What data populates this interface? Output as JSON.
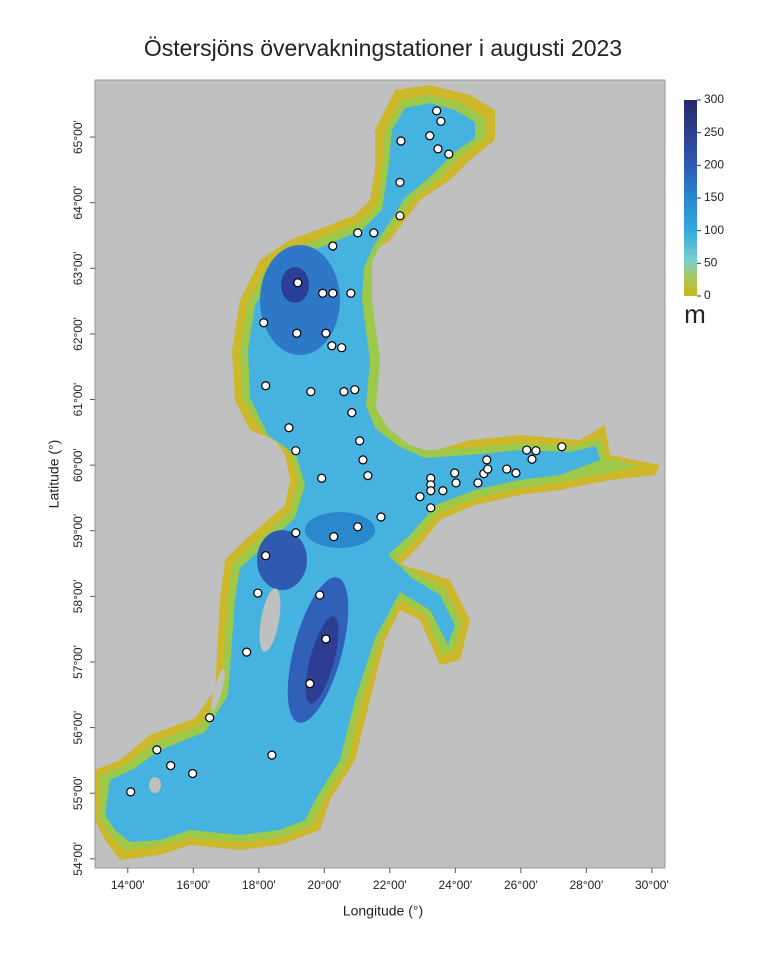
{
  "chart_data": {
    "type": "scatter",
    "title": "Östersjöns övervakningstationer i augusti 2023",
    "xlabel": "Longitude (°)",
    "ylabel": "Latitude (°)",
    "x": [
      23.43,
      23.56,
      22.34,
      23.22,
      23.47,
      23.8,
      22.31,
      22.31,
      21.02,
      21.51,
      20.26,
      19.19,
      19.95,
      20.26,
      20.81,
      18.15,
      19.16,
      20.05,
      20.23,
      20.53,
      18.21,
      19.59,
      20.6,
      20.93,
      20.84,
      18.92,
      21.08,
      21.18,
      19.13,
      21.33,
      19.92,
      22.92,
      23.25,
      23.25,
      23.25,
      23.62,
      23.25,
      23.98,
      24.02,
      24.69,
      24.87,
      24.99,
      24.96,
      25.57,
      25.85,
      26.18,
      26.46,
      26.34,
      27.25,
      21.73,
      21.02,
      20.29,
      19.13,
      18.21,
      17.97,
      19.86,
      20.05,
      17.63,
      19.56,
      16.5,
      14.89,
      15.31,
      15.98,
      14.09,
      18.4
    ],
    "values": [
      65.4,
      65.24,
      64.94,
      65.02,
      64.82,
      64.74,
      64.31,
      63.8,
      63.54,
      63.54,
      63.34,
      62.78,
      62.62,
      62.62,
      62.62,
      62.17,
      62.01,
      62.01,
      61.82,
      61.79,
      61.21,
      61.12,
      61.12,
      61.15,
      60.8,
      60.57,
      60.37,
      60.08,
      60.22,
      59.84,
      59.8,
      59.52,
      59.8,
      59.7,
      59.61,
      59.61,
      59.35,
      59.88,
      59.73,
      59.73,
      59.87,
      59.94,
      60.08,
      59.94,
      59.88,
      60.23,
      60.22,
      60.09,
      60.28,
      59.21,
      59.06,
      58.91,
      58.97,
      58.62,
      58.05,
      58.02,
      57.35,
      57.15,
      56.67,
      56.15,
      55.66,
      55.42,
      55.3,
      55.02,
      55.58
    ],
    "color": "#ffffff",
    "xlim": [
      13,
      30.4
    ],
    "ylim": [
      53.86,
      65.87
    ],
    "xticks": [
      {
        "value": 14,
        "label": "14°00'"
      },
      {
        "value": 16,
        "label": "16°00'"
      },
      {
        "value": 18,
        "label": "18°00'"
      },
      {
        "value": 20,
        "label": "20°00'"
      },
      {
        "value": 22,
        "label": "22°00'"
      },
      {
        "value": 24,
        "label": "24°00'"
      },
      {
        "value": 26,
        "label": "26°00'"
      },
      {
        "value": 28,
        "label": "28°00'"
      },
      {
        "value": 30,
        "label": "30°00'"
      }
    ],
    "yticks": [
      {
        "value": 54,
        "label": "54°00'"
      },
      {
        "value": 55,
        "label": "55°00'"
      },
      {
        "value": 56,
        "label": "56°00'"
      },
      {
        "value": 57,
        "label": "57°00'"
      },
      {
        "value": 58,
        "label": "58°00'"
      },
      {
        "value": 59,
        "label": "59°00'"
      },
      {
        "value": 60,
        "label": "60°00'"
      },
      {
        "value": 61,
        "label": "61°00'"
      },
      {
        "value": 62,
        "label": "62°00'"
      },
      {
        "value": 63,
        "label": "63°00'"
      },
      {
        "value": 64,
        "label": "64°00'"
      },
      {
        "value": 65,
        "label": "65°00'"
      }
    ],
    "colorbar": {
      "label": "m",
      "lim": [
        0,
        300
      ],
      "ticks": [
        0,
        50,
        100,
        150,
        200,
        250,
        300
      ]
    }
  }
}
